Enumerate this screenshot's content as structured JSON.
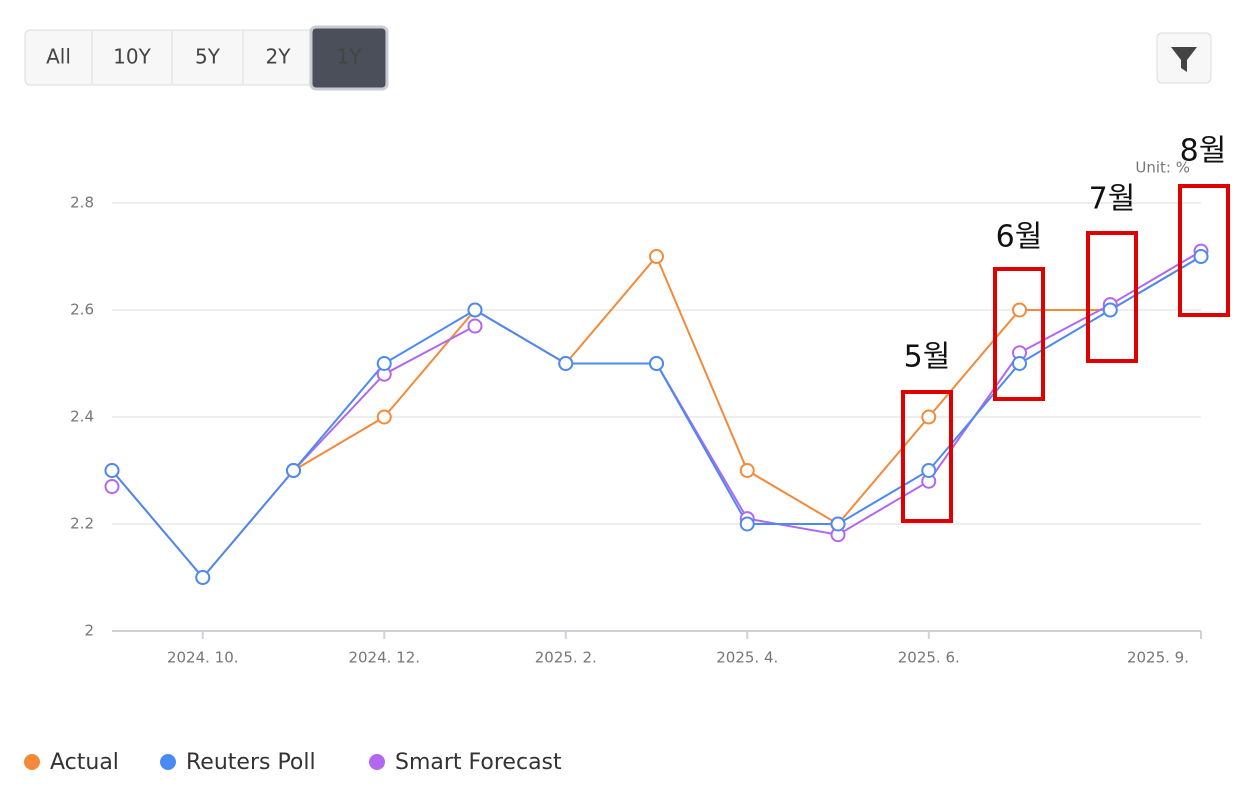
{
  "controls": {
    "range_buttons": [
      "All",
      "10Y",
      "5Y",
      "2Y",
      "1Y"
    ],
    "active_range": "1Y"
  },
  "chart_data": {
    "type": "line",
    "unit_label": "Unit: %",
    "categories": [
      null,
      "2024. 10.",
      null,
      "2024. 12.",
      null,
      "2025. 2.",
      null,
      "2025. 4.",
      null,
      "2025. 6.",
      null,
      null,
      "2025. 9."
    ],
    "series": [
      {
        "name": "Actual",
        "color": "#f5893a",
        "values": [
          2.3,
          2.1,
          2.3,
          2.4,
          2.6,
          2.5,
          2.7,
          2.3,
          2.2,
          2.4,
          2.6,
          2.6,
          2.7
        ]
      },
      {
        "name": "Smart Forecast",
        "color": "#b366f0",
        "values": [
          2.27,
          null,
          2.3,
          2.48,
          2.57,
          null,
          2.5,
          2.21,
          2.18,
          2.28,
          2.52,
          2.61,
          2.71
        ]
      },
      {
        "name": "Reuters Poll",
        "color": "#4a8af4",
        "values": [
          2.3,
          2.1,
          2.3,
          2.5,
          2.6,
          2.5,
          2.5,
          2.2,
          2.2,
          2.3,
          2.5,
          2.6,
          2.7
        ]
      }
    ],
    "legend_order": [
      0,
      2,
      1
    ],
    "ylim": [
      2,
      2.8
    ],
    "yticks": [
      2,
      2.2,
      2.4,
      2.6,
      2.8
    ],
    "grid": true,
    "annotations": [
      "5월",
      "6월",
      "7월",
      "8월"
    ]
  }
}
